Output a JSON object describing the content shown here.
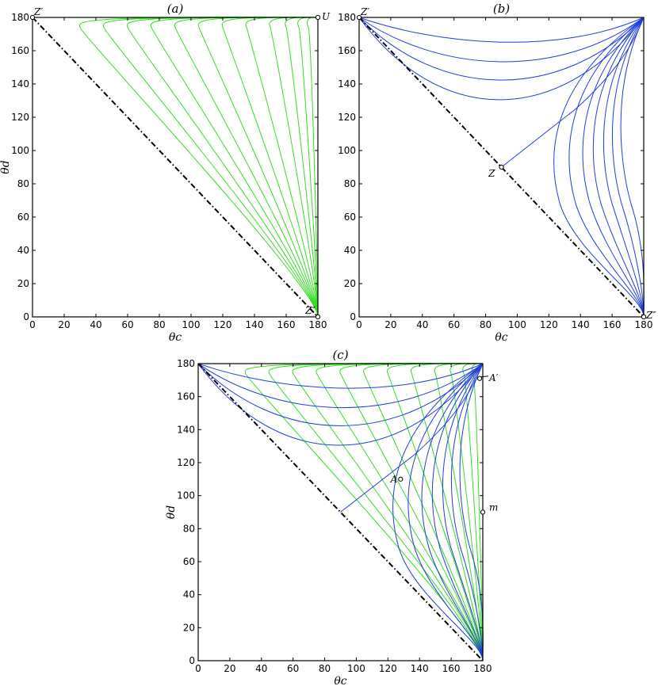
{
  "colors": {
    "green": "#33dd22",
    "blue": "#1f3ee0",
    "axis": "#000000"
  },
  "chart_data": [
    {
      "type": "line",
      "title": "(a)",
      "xlabel": "θc",
      "ylabel": "θd",
      "xlim": [
        0,
        180
      ],
      "ylim": [
        0,
        180
      ],
      "xticks": [
        0,
        20,
        40,
        60,
        80,
        100,
        120,
        140,
        160,
        180
      ],
      "yticks": [
        0,
        20,
        40,
        60,
        80,
        100,
        120,
        140,
        160,
        180
      ],
      "grid": false,
      "diagonal": {
        "style": "dash-dot",
        "from": [
          0,
          180
        ],
        "to": [
          180,
          0
        ]
      },
      "points": [
        {
          "label": "Z′",
          "x": 0,
          "y": 180
        },
        {
          "label": "U",
          "x": 180,
          "y": 180
        },
        {
          "label": "Z″",
          "x": 180,
          "y": 0
        }
      ],
      "series": [
        {
          "color": "green",
          "min_x": [
            30,
            45,
            60,
            75,
            90,
            105,
            120,
            135,
            150,
            160,
            168,
            174
          ]
        }
      ]
    },
    {
      "type": "line",
      "title": "(b)",
      "xlabel": "θc",
      "ylabel": "",
      "xlim": [
        0,
        180
      ],
      "ylim": [
        0,
        180
      ],
      "xticks": [
        0,
        20,
        40,
        60,
        80,
        100,
        120,
        140,
        160,
        180
      ],
      "yticks": [
        0,
        20,
        40,
        60,
        80,
        100,
        120,
        140,
        160,
        180
      ],
      "grid": false,
      "diagonal": {
        "style": "dash-dot",
        "from": [
          0,
          180
        ],
        "to": [
          180,
          0
        ]
      },
      "points": [
        {
          "label": "Z′",
          "x": 0,
          "y": 180
        },
        {
          "label": "Z",
          "x": 90,
          "y": 90
        },
        {
          "label": "Z″",
          "x": 180,
          "y": 0
        }
      ],
      "series": [
        {
          "color": "blue",
          "upper_min_y": [
            165,
            150,
            136,
            121
          ],
          "separatrix": [
            [
              90,
              90
            ],
            [
              180,
              180
            ]
          ],
          "lower_min_x": [
            127,
            137,
            146,
            153,
            160,
            166,
            172
          ]
        }
      ]
    },
    {
      "type": "line",
      "title": "(c)",
      "xlabel": "θc",
      "ylabel": "θd",
      "xlim": [
        0,
        180
      ],
      "ylim": [
        0,
        180
      ],
      "xticks": [
        0,
        20,
        40,
        60,
        80,
        100,
        120,
        140,
        160,
        180
      ],
      "yticks": [
        0,
        20,
        40,
        60,
        80,
        100,
        120,
        140,
        160,
        180
      ],
      "grid": false,
      "diagonal": {
        "style": "dash-dot",
        "from": [
          0,
          180
        ],
        "to": [
          180,
          0
        ]
      },
      "points": [
        {
          "label": "A′",
          "x": 178,
          "y": 171
        },
        {
          "label": "A",
          "x": 128,
          "y": 110
        },
        {
          "label": "m",
          "x": 180,
          "y": 90
        }
      ],
      "series": [
        {
          "color": "green",
          "min_x": [
            30,
            45,
            60,
            75,
            90,
            105,
            120,
            135,
            150,
            160,
            168,
            174
          ]
        },
        {
          "color": "blue",
          "upper_min_y": [
            165,
            150,
            136,
            121
          ],
          "separatrix": [
            [
              90,
              90
            ],
            [
              180,
              180
            ]
          ],
          "lower_min_x": [
            127,
            137,
            146,
            153,
            160,
            166,
            172
          ]
        }
      ]
    }
  ]
}
